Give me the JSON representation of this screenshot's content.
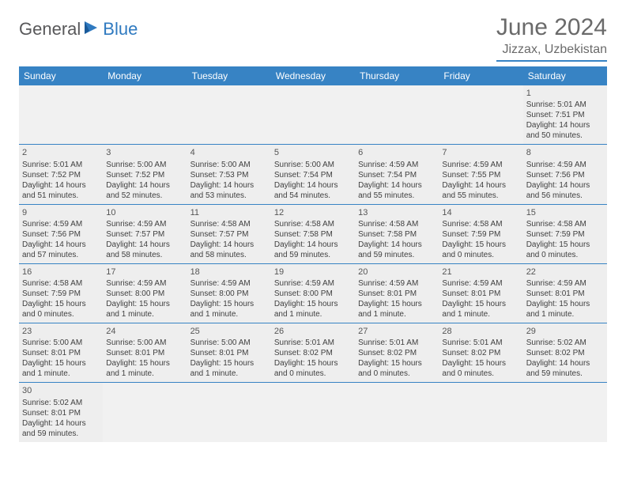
{
  "logo": {
    "general": "General",
    "blue": "Blue"
  },
  "title": "June 2024",
  "location": "Jizzax, Uzbekistan",
  "weekdays": [
    "Sunday",
    "Monday",
    "Tuesday",
    "Wednesday",
    "Thursday",
    "Friday",
    "Saturday"
  ],
  "colors": {
    "header_bar": "#3783c4",
    "header_text": "#ffffff",
    "cell_bg": "#eeeeee",
    "empty_bg": "#f1f1f1",
    "title_color": "#6a6a6a",
    "logo_gray": "#58585a",
    "logo_blue": "#2f7ac0"
  },
  "weeks": [
    [
      {
        "empty": true
      },
      {
        "empty": true
      },
      {
        "empty": true
      },
      {
        "empty": true
      },
      {
        "empty": true
      },
      {
        "empty": true
      },
      {
        "day": "1",
        "sunrise": "Sunrise: 5:01 AM",
        "sunset": "Sunset: 7:51 PM",
        "daylight": "Daylight: 14 hours and 50 minutes."
      }
    ],
    [
      {
        "day": "2",
        "sunrise": "Sunrise: 5:01 AM",
        "sunset": "Sunset: 7:52 PM",
        "daylight": "Daylight: 14 hours and 51 minutes."
      },
      {
        "day": "3",
        "sunrise": "Sunrise: 5:00 AM",
        "sunset": "Sunset: 7:52 PM",
        "daylight": "Daylight: 14 hours and 52 minutes."
      },
      {
        "day": "4",
        "sunrise": "Sunrise: 5:00 AM",
        "sunset": "Sunset: 7:53 PM",
        "daylight": "Daylight: 14 hours and 53 minutes."
      },
      {
        "day": "5",
        "sunrise": "Sunrise: 5:00 AM",
        "sunset": "Sunset: 7:54 PM",
        "daylight": "Daylight: 14 hours and 54 minutes."
      },
      {
        "day": "6",
        "sunrise": "Sunrise: 4:59 AM",
        "sunset": "Sunset: 7:54 PM",
        "daylight": "Daylight: 14 hours and 55 minutes."
      },
      {
        "day": "7",
        "sunrise": "Sunrise: 4:59 AM",
        "sunset": "Sunset: 7:55 PM",
        "daylight": "Daylight: 14 hours and 55 minutes."
      },
      {
        "day": "8",
        "sunrise": "Sunrise: 4:59 AM",
        "sunset": "Sunset: 7:56 PM",
        "daylight": "Daylight: 14 hours and 56 minutes."
      }
    ],
    [
      {
        "day": "9",
        "sunrise": "Sunrise: 4:59 AM",
        "sunset": "Sunset: 7:56 PM",
        "daylight": "Daylight: 14 hours and 57 minutes."
      },
      {
        "day": "10",
        "sunrise": "Sunrise: 4:59 AM",
        "sunset": "Sunset: 7:57 PM",
        "daylight": "Daylight: 14 hours and 58 minutes."
      },
      {
        "day": "11",
        "sunrise": "Sunrise: 4:58 AM",
        "sunset": "Sunset: 7:57 PM",
        "daylight": "Daylight: 14 hours and 58 minutes."
      },
      {
        "day": "12",
        "sunrise": "Sunrise: 4:58 AM",
        "sunset": "Sunset: 7:58 PM",
        "daylight": "Daylight: 14 hours and 59 minutes."
      },
      {
        "day": "13",
        "sunrise": "Sunrise: 4:58 AM",
        "sunset": "Sunset: 7:58 PM",
        "daylight": "Daylight: 14 hours and 59 minutes."
      },
      {
        "day": "14",
        "sunrise": "Sunrise: 4:58 AM",
        "sunset": "Sunset: 7:59 PM",
        "daylight": "Daylight: 15 hours and 0 minutes."
      },
      {
        "day": "15",
        "sunrise": "Sunrise: 4:58 AM",
        "sunset": "Sunset: 7:59 PM",
        "daylight": "Daylight: 15 hours and 0 minutes."
      }
    ],
    [
      {
        "day": "16",
        "sunrise": "Sunrise: 4:58 AM",
        "sunset": "Sunset: 7:59 PM",
        "daylight": "Daylight: 15 hours and 0 minutes."
      },
      {
        "day": "17",
        "sunrise": "Sunrise: 4:59 AM",
        "sunset": "Sunset: 8:00 PM",
        "daylight": "Daylight: 15 hours and 1 minute."
      },
      {
        "day": "18",
        "sunrise": "Sunrise: 4:59 AM",
        "sunset": "Sunset: 8:00 PM",
        "daylight": "Daylight: 15 hours and 1 minute."
      },
      {
        "day": "19",
        "sunrise": "Sunrise: 4:59 AM",
        "sunset": "Sunset: 8:00 PM",
        "daylight": "Daylight: 15 hours and 1 minute."
      },
      {
        "day": "20",
        "sunrise": "Sunrise: 4:59 AM",
        "sunset": "Sunset: 8:01 PM",
        "daylight": "Daylight: 15 hours and 1 minute."
      },
      {
        "day": "21",
        "sunrise": "Sunrise: 4:59 AM",
        "sunset": "Sunset: 8:01 PM",
        "daylight": "Daylight: 15 hours and 1 minute."
      },
      {
        "day": "22",
        "sunrise": "Sunrise: 4:59 AM",
        "sunset": "Sunset: 8:01 PM",
        "daylight": "Daylight: 15 hours and 1 minute."
      }
    ],
    [
      {
        "day": "23",
        "sunrise": "Sunrise: 5:00 AM",
        "sunset": "Sunset: 8:01 PM",
        "daylight": "Daylight: 15 hours and 1 minute."
      },
      {
        "day": "24",
        "sunrise": "Sunrise: 5:00 AM",
        "sunset": "Sunset: 8:01 PM",
        "daylight": "Daylight: 15 hours and 1 minute."
      },
      {
        "day": "25",
        "sunrise": "Sunrise: 5:00 AM",
        "sunset": "Sunset: 8:01 PM",
        "daylight": "Daylight: 15 hours and 1 minute."
      },
      {
        "day": "26",
        "sunrise": "Sunrise: 5:01 AM",
        "sunset": "Sunset: 8:02 PM",
        "daylight": "Daylight: 15 hours and 0 minutes."
      },
      {
        "day": "27",
        "sunrise": "Sunrise: 5:01 AM",
        "sunset": "Sunset: 8:02 PM",
        "daylight": "Daylight: 15 hours and 0 minutes."
      },
      {
        "day": "28",
        "sunrise": "Sunrise: 5:01 AM",
        "sunset": "Sunset: 8:02 PM",
        "daylight": "Daylight: 15 hours and 0 minutes."
      },
      {
        "day": "29",
        "sunrise": "Sunrise: 5:02 AM",
        "sunset": "Sunset: 8:02 PM",
        "daylight": "Daylight: 14 hours and 59 minutes."
      }
    ],
    [
      {
        "day": "30",
        "sunrise": "Sunrise: 5:02 AM",
        "sunset": "Sunset: 8:01 PM",
        "daylight": "Daylight: 14 hours and 59 minutes."
      },
      {
        "empty": true
      },
      {
        "empty": true
      },
      {
        "empty": true
      },
      {
        "empty": true
      },
      {
        "empty": true
      },
      {
        "empty": true
      }
    ]
  ]
}
